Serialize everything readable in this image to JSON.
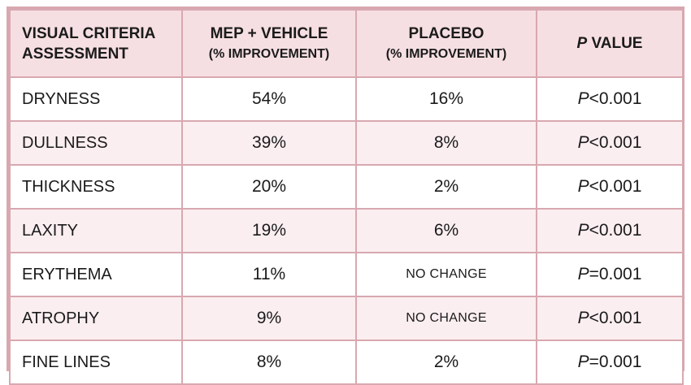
{
  "chart_data": {
    "type": "table",
    "columns": [
      {
        "line1": "VISUAL CRITERIA",
        "line2": "ASSESSMENT"
      },
      {
        "line1": "MEP + VEHICLE",
        "line2": "(% IMPROVEMENT)"
      },
      {
        "line1": "PLACEBO",
        "line2": "(% IMPROVEMENT)"
      },
      {
        "p": "P",
        "rest": " VALUE"
      }
    ],
    "rows": [
      {
        "criterion": "DRYNESS",
        "mep": "54%",
        "placebo": "16%",
        "p": "P",
        "pval": "<0.001"
      },
      {
        "criterion": "DULLNESS",
        "mep": "39%",
        "placebo": "8%",
        "p": "P",
        "pval": "<0.001"
      },
      {
        "criterion": "THICKNESS",
        "mep": "20%",
        "placebo": "2%",
        "p": "P",
        "pval": "<0.001"
      },
      {
        "criterion": "LAXITY",
        "mep": "19%",
        "placebo": "6%",
        "p": "P",
        "pval": "<0.001"
      },
      {
        "criterion": "ERYTHEMA",
        "mep": "11%",
        "placebo": "NO CHANGE",
        "p": "P",
        "pval": "=0.001"
      },
      {
        "criterion": "ATROPHY",
        "mep": "9%",
        "placebo": "NO CHANGE",
        "p": "P",
        "pval": "<0.001"
      },
      {
        "criterion": "FINE LINES",
        "mep": "8%",
        "placebo": "2%",
        "p": "P",
        "pval": "=0.001"
      }
    ]
  },
  "colors": {
    "border": "#d8a8b0",
    "header_bg": "#f6dfe2",
    "row_alt_bg": "#fbeef0",
    "row_bg": "#ffffff",
    "text": "#1b1b1b"
  }
}
